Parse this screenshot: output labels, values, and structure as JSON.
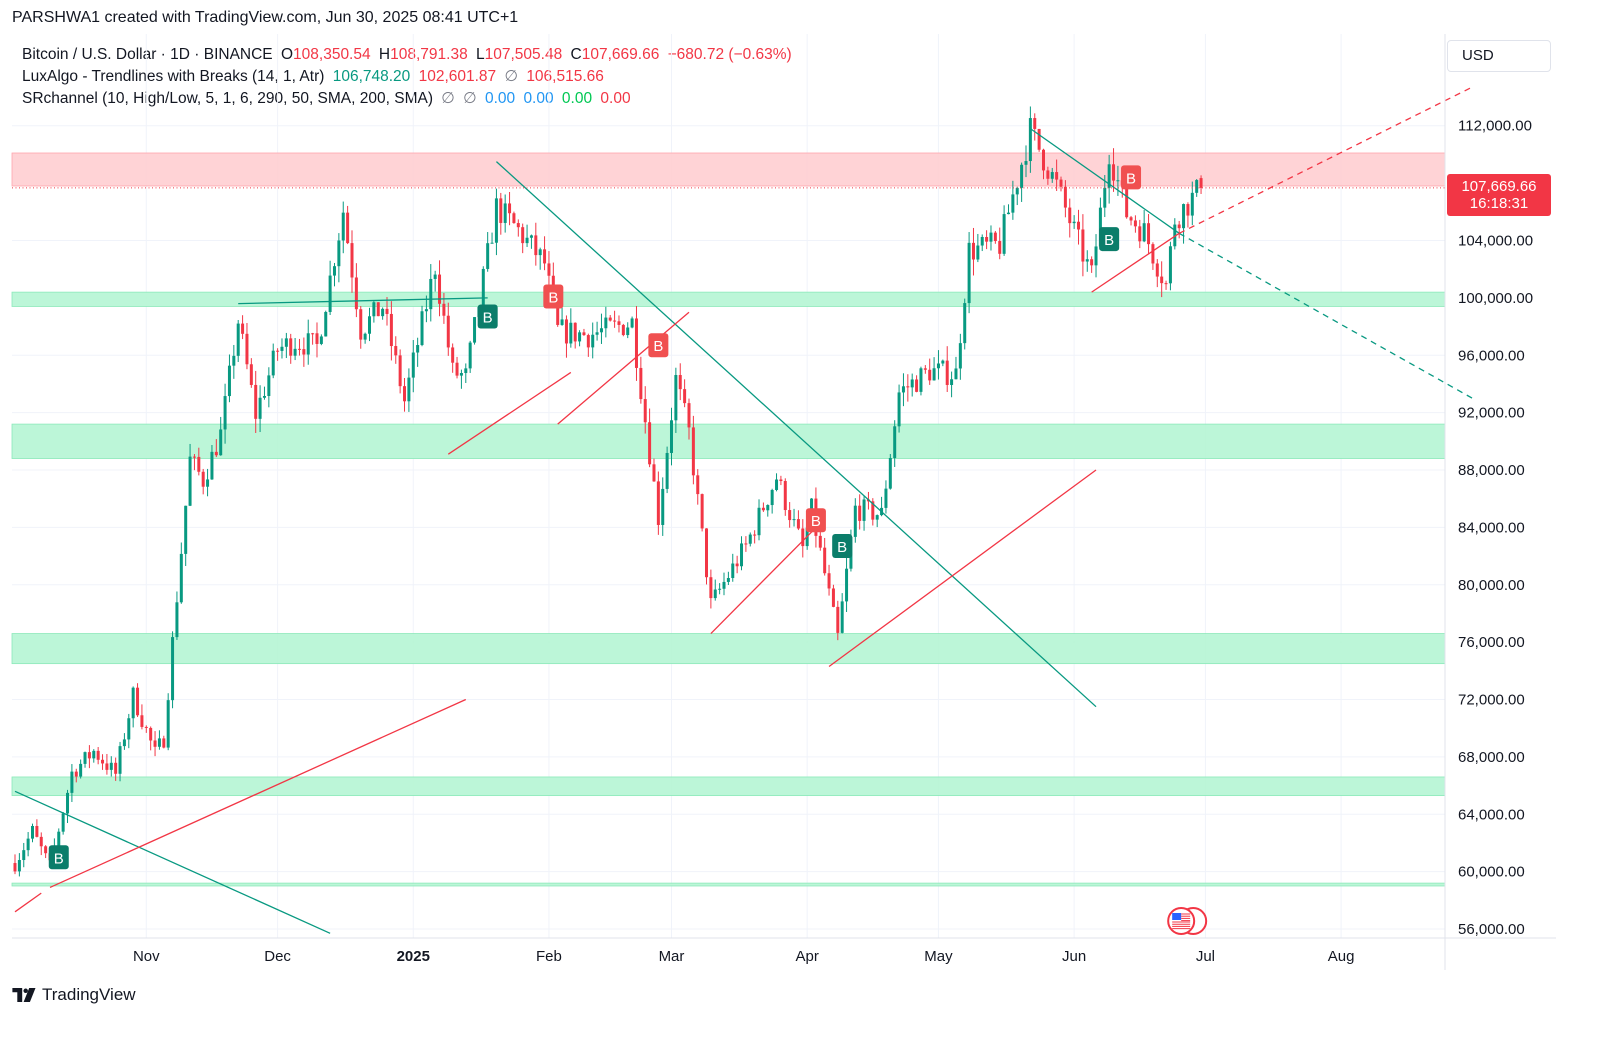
{
  "header": {
    "attribution": "PARSHWA1 created with TradingView.com, Jun 30, 2025 08:41 UTC+1"
  },
  "legend": {
    "symbol": "Bitcoin / U.S. Dollar · 1D · BINANCE",
    "o_label": "O",
    "o_value": "108,350.54",
    "h_label": "H",
    "h_value": "108,791.38",
    "l_label": "L",
    "l_value": "107,505.48",
    "c_label": "C",
    "c_value": "107,669.66",
    "change": "−680.72 (−0.63%)",
    "ind1_name": "LuxAlgo - Trendlines with Breaks (14, 1, Atr)",
    "ind1_v1": "106,748.20",
    "ind1_v2": "102,601.87",
    "ind1_sym": "∅",
    "ind1_v3": "106,515.66",
    "ind2_name": "SRchannel (10, High/Low, 5, 1, 6, 290, 50, SMA, 200, SMA)",
    "ind2_sym1": "∅",
    "ind2_sym2": "∅",
    "ind2_v1": "0.00",
    "ind2_v2": "0.00",
    "ind2_v3": "0.00",
    "ind2_v4": "0.00"
  },
  "currency": "USD",
  "last_price": {
    "value": "107,669.66",
    "countdown": "16:18:31"
  },
  "brand": "TradingView",
  "colors": {
    "up": "#089981",
    "down": "#f23645",
    "support_zone": "#b9f6d6",
    "resistance_zone": "#ffd1d4"
  },
  "chart_data": {
    "type": "candlestick",
    "symbol": "BTCUSD",
    "interval": "1D",
    "y_axis": {
      "min": 56000,
      "max": 112000,
      "ticks": [
        "112,000.00",
        "104,000.00",
        "100,000.00",
        "96,000.00",
        "92,000.00",
        "88,000.00",
        "84,000.00",
        "80,000.00",
        "76,000.00",
        "72,000.00",
        "68,000.00",
        "64,000.00",
        "60,000.00",
        "56,000.00"
      ]
    },
    "x_axis": {
      "start": "2024-10-02",
      "ticks": [
        {
          "label": "Nov",
          "date": "2024-11-01",
          "bold": false
        },
        {
          "label": "Dec",
          "date": "2024-12-01",
          "bold": false
        },
        {
          "label": "2025",
          "date": "2025-01-01",
          "bold": true
        },
        {
          "label": "Feb",
          "date": "2025-02-01",
          "bold": false
        },
        {
          "label": "Mar",
          "date": "2025-03-01",
          "bold": false
        },
        {
          "label": "Apr",
          "date": "2025-04-01",
          "bold": false
        },
        {
          "label": "May",
          "date": "2025-05-01",
          "bold": false
        },
        {
          "label": "Jun",
          "date": "2025-06-01",
          "bold": false
        },
        {
          "label": "Jul",
          "date": "2025-07-01",
          "bold": false
        },
        {
          "label": "Aug",
          "date": "2025-08-01",
          "bold": false
        }
      ]
    },
    "last_close": 107669.66,
    "zones": [
      {
        "kind": "resistance",
        "low": 107800,
        "high": 110100
      },
      {
        "kind": "support",
        "low": 99400,
        "high": 100400
      },
      {
        "kind": "support",
        "low": 88800,
        "high": 91200
      },
      {
        "kind": "support",
        "low": 74500,
        "high": 76600
      },
      {
        "kind": "support",
        "low": 65300,
        "high": 66600
      },
      {
        "kind": "support",
        "low": 59000,
        "high": 59200
      }
    ],
    "trendlines": [
      {
        "color": "teal",
        "from": [
          "2024-10-02",
          65600
        ],
        "to": [
          "2024-12-13",
          55700
        ],
        "dashed": false
      },
      {
        "color": "red",
        "from": [
          "2024-10-02",
          57200
        ],
        "to": [
          "2024-10-08",
          58500
        ],
        "dashed": false
      },
      {
        "color": "red",
        "from": [
          "2024-10-10",
          58900
        ],
        "to": [
          "2025-01-13",
          72000
        ],
        "dashed": false
      },
      {
        "color": "teal",
        "from": [
          "2024-11-22",
          99600
        ],
        "to": [
          "2025-01-18",
          100000
        ],
        "dashed": false
      },
      {
        "color": "teal",
        "from": [
          "2025-01-20",
          109500
        ],
        "to": [
          "2025-06-06",
          71500
        ],
        "dashed": false
      },
      {
        "color": "red",
        "from": [
          "2025-01-09",
          89100
        ],
        "to": [
          "2025-02-06",
          94800
        ],
        "dashed": false
      },
      {
        "color": "red",
        "from": [
          "2025-02-03",
          91200
        ],
        "to": [
          "2025-03-05",
          99000
        ],
        "dashed": false
      },
      {
        "color": "red",
        "from": [
          "2025-03-10",
          76600
        ],
        "to": [
          "2025-04-05",
          84600
        ],
        "dashed": false
      },
      {
        "color": "red",
        "from": [
          "2025-04-06",
          74300
        ],
        "to": [
          "2025-06-06",
          88000
        ],
        "dashed": false
      },
      {
        "color": "teal",
        "from": [
          "2025-05-22",
          111800
        ],
        "to": [
          "2025-06-25",
          104500
        ],
        "dashed": false
      },
      {
        "color": "teal",
        "from": [
          "2025-06-25",
          104500
        ],
        "to": [
          "2025-08-31",
          93000
        ],
        "dashed": true
      },
      {
        "color": "red",
        "from": [
          "2025-06-05",
          100400
        ],
        "to": [
          "2025-06-25",
          104500
        ],
        "dashed": false
      },
      {
        "color": "red",
        "from": [
          "2025-06-25",
          104500
        ],
        "to": [
          "2025-08-31",
          114700
        ],
        "dashed": true
      }
    ],
    "break_labels": [
      {
        "label": "B",
        "type": "up",
        "date": "2024-10-12",
        "price": 61000
      },
      {
        "label": "B",
        "type": "up",
        "date": "2025-01-18",
        "price": 98700
      },
      {
        "label": "B",
        "type": "down",
        "date": "2025-02-02",
        "price": 100100
      },
      {
        "label": "B",
        "type": "down",
        "date": "2025-02-26",
        "price": 96700
      },
      {
        "label": "B",
        "type": "down",
        "date": "2025-04-03",
        "price": 84500
      },
      {
        "label": "B",
        "type": "up",
        "date": "2025-04-09",
        "price": 82700
      },
      {
        "label": "B",
        "type": "up",
        "date": "2025-06-09",
        "price": 104100
      },
      {
        "label": "B",
        "type": "down",
        "date": "2025-06-14",
        "price": 108400
      }
    ],
    "price_path": [
      [
        "2024-10-02",
        60600
      ],
      [
        "2024-10-06",
        62800
      ],
      [
        "2024-10-10",
        60300
      ],
      [
        "2024-10-15",
        66900
      ],
      [
        "2024-10-20",
        68400
      ],
      [
        "2024-10-25",
        66800
      ],
      [
        "2024-10-29",
        72300
      ],
      [
        "2024-11-03",
        68200
      ],
      [
        "2024-11-05",
        69300
      ],
      [
        "2024-11-07",
        76000
      ],
      [
        "2024-11-11",
        88700
      ],
      [
        "2024-11-14",
        87300
      ],
      [
        "2024-11-18",
        90500
      ],
      [
        "2024-11-22",
        98400
      ],
      [
        "2024-11-26",
        91900
      ],
      [
        "2024-12-01",
        96400
      ],
      [
        "2024-12-05",
        97000
      ],
      [
        "2024-12-10",
        96600
      ],
      [
        "2024-12-16",
        106100
      ],
      [
        "2024-12-20",
        97800
      ],
      [
        "2024-12-25",
        99400
      ],
      [
        "2024-12-30",
        92800
      ],
      [
        "2025-01-06",
        102200
      ],
      [
        "2025-01-10",
        94800
      ],
      [
        "2025-01-13",
        94500
      ],
      [
        "2025-01-20",
        106300
      ],
      [
        "2025-01-25",
        104700
      ],
      [
        "2025-01-31",
        102400
      ],
      [
        "2025-02-03",
        97700
      ],
      [
        "2025-02-10",
        97400
      ],
      [
        "2025-02-20",
        98300
      ],
      [
        "2025-02-26",
        84700
      ],
      [
        "2025-03-02",
        94300
      ],
      [
        "2025-03-05",
        90600
      ],
      [
        "2025-03-10",
        78600
      ],
      [
        "2025-03-18",
        82700
      ],
      [
        "2025-03-25",
        87500
      ],
      [
        "2025-03-31",
        82500
      ],
      [
        "2025-04-02",
        85200
      ],
      [
        "2025-04-08",
        76300
      ],
      [
        "2025-04-12",
        85300
      ],
      [
        "2025-04-18",
        84900
      ],
      [
        "2025-04-22",
        93400
      ],
      [
        "2025-04-29",
        94900
      ],
      [
        "2025-05-05",
        94700
      ],
      [
        "2025-05-08",
        103300
      ],
      [
        "2025-05-15",
        103700
      ],
      [
        "2025-05-22",
        111700
      ],
      [
        "2025-05-28",
        107800
      ],
      [
        "2025-06-01",
        104600
      ],
      [
        "2025-06-05",
        101500
      ],
      [
        "2025-06-09",
        110300
      ],
      [
        "2025-06-13",
        105900
      ],
      [
        "2025-06-17",
        104600
      ],
      [
        "2025-06-22",
        100900
      ],
      [
        "2025-06-24",
        105500
      ],
      [
        "2025-06-30",
        107669.66
      ]
    ]
  }
}
